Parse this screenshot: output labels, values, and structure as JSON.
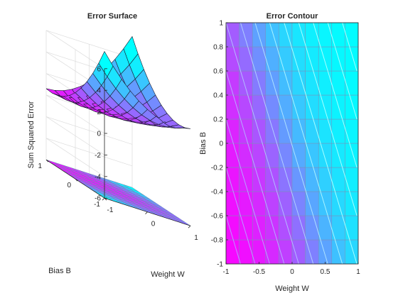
{
  "chart_data": [
    {
      "type": "surface",
      "title": "Error Surface",
      "xlabel": "Weight W",
      "ylabel": "Bias B",
      "zlabel": "Sum Squared Error",
      "xlim": [
        -1,
        1
      ],
      "ylim": [
        -1,
        1
      ],
      "zlim": [
        -6,
        6
      ],
      "xticks": [
        -1,
        0,
        1
      ],
      "yticks": [
        -1,
        0,
        1
      ],
      "zticks": [
        -6,
        -4,
        -2,
        0,
        2,
        4,
        6
      ],
      "grid_points": 11,
      "surface_model": {
        "description": "approximate sum squared error over W,B",
        "z_min": 0,
        "z_max": 6
      },
      "colormap": [
        "#ff00ff",
        "#00ffff"
      ]
    },
    {
      "type": "heatmap",
      "title": "Error Contour",
      "xlabel": "Weight W",
      "ylabel": "Bias B",
      "xlim": [
        -1,
        1
      ],
      "ylim": [
        -1,
        1
      ],
      "xticks": [
        "-1",
        "-0.5",
        "0",
        "0.5",
        "1"
      ],
      "yticks": [
        "-1",
        "-0.8",
        "-0.6",
        "-0.4",
        "-0.2",
        "0",
        "0.2",
        "0.4",
        "0.6",
        "0.8",
        "1"
      ],
      "grid_points": 11,
      "contour_levels": 14,
      "colormap": [
        "#ff00ff",
        "#00ffff"
      ]
    }
  ]
}
